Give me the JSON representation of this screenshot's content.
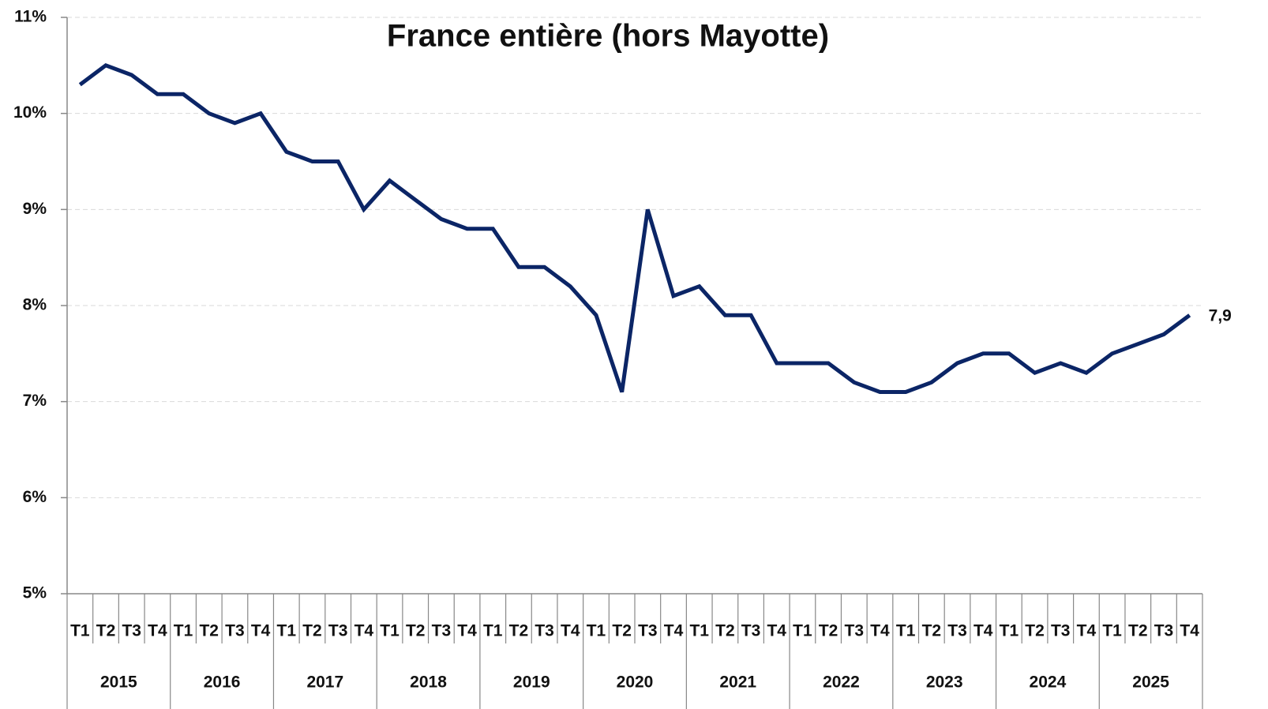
{
  "chart_data": {
    "type": "line",
    "title": "France entière (hors Mayotte)",
    "categories": [
      "T1",
      "T2",
      "T3",
      "T4",
      "T1",
      "T2",
      "T3",
      "T4",
      "T1",
      "T2",
      "T3",
      "T4",
      "T1",
      "T2",
      "T3",
      "T4",
      "T1",
      "T2",
      "T3",
      "T4",
      "T1",
      "T2",
      "T3",
      "T4",
      "T1",
      "T2",
      "T3",
      "T4",
      "T1",
      "T2",
      "T3",
      "T4",
      "T1",
      "T2",
      "T3",
      "T4",
      "T1",
      "T2",
      "T3",
      "T4",
      "T1",
      "T2",
      "T3",
      "T4"
    ],
    "category_groups": [
      "2015",
      "2016",
      "2017",
      "2018",
      "2019",
      "2020",
      "2021",
      "2022",
      "2023",
      "2024",
      "2025"
    ],
    "values": [
      10.3,
      10.5,
      10.4,
      10.2,
      10.2,
      10.0,
      9.9,
      10.0,
      9.6,
      9.5,
      9.5,
      9.0,
      9.3,
      9.1,
      8.9,
      8.8,
      8.8,
      8.4,
      8.4,
      8.2,
      7.9,
      7.1,
      9.0,
      8.1,
      8.2,
      7.9,
      7.9,
      7.4,
      7.4,
      7.4,
      7.2,
      7.1,
      7.1,
      7.2,
      7.4,
      7.5,
      7.5,
      7.3,
      7.4,
      7.3,
      7.5,
      7.6,
      7.7,
      7.9
    ],
    "value_labels": [
      null,
      null,
      null,
      null,
      null,
      null,
      null,
      null,
      null,
      null,
      null,
      null,
      null,
      null,
      null,
      null,
      null,
      null,
      null,
      null,
      null,
      null,
      null,
      null,
      null,
      null,
      null,
      null,
      null,
      null,
      null,
      null,
      null,
      null,
      null,
      null,
      null,
      null,
      null,
      null,
      null,
      null,
      null,
      "7,9"
    ],
    "color": "#0b2566",
    "ylim": [
      5,
      11
    ],
    "yticks": [
      {
        "value": 5,
        "label": "5%"
      },
      {
        "value": 6,
        "label": "6%"
      },
      {
        "value": 7,
        "label": "7%"
      },
      {
        "value": 8,
        "label": "8%"
      },
      {
        "value": 9,
        "label": "9%"
      },
      {
        "value": 10,
        "label": "10%"
      },
      {
        "value": 11,
        "label": "11%"
      }
    ],
    "grid": true
  }
}
